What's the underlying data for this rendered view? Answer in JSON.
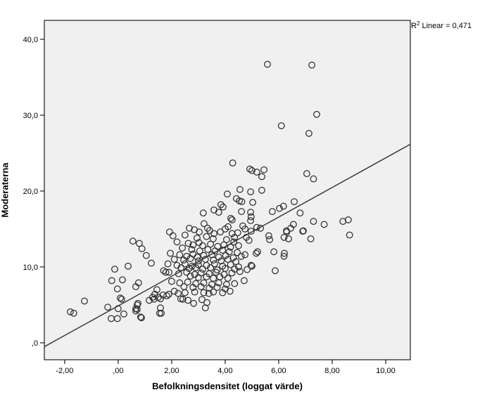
{
  "chart": {
    "y_title": "Moderaterna",
    "x_title": "Befolkningsdensitet (loggat värde)",
    "r2": {
      "prefix": "R",
      "sup": "2",
      "rest": " Linear = 0,471"
    }
  },
  "colors": {
    "canvas_bg": "#ffffff",
    "plot_bg": "#f0f0f0",
    "frame": "#545454",
    "marker": "#2e2e2e",
    "fit_line": "#3c3c3c",
    "tick": "#1a1a1a",
    "text": "#000000"
  },
  "chart_data": {
    "type": "scatter",
    "title": "",
    "xlabel": "Befolkningsdensitet (loggat värde)",
    "ylabel": "Moderaterna",
    "annotation": "R2 Linear = 0,471",
    "grid": false,
    "legend": "none",
    "marker": "open-circle",
    "xlim": [
      -2.76,
      10.92
    ],
    "ylim": [
      -2.23,
      42.49
    ],
    "x_ticks": [
      {
        "value": -2,
        "label": "-2,00"
      },
      {
        "value": 0,
        "label": ",00"
      },
      {
        "value": 2,
        "label": "2,00"
      },
      {
        "value": 4,
        "label": "4,00"
      },
      {
        "value": 6,
        "label": "6,00"
      },
      {
        "value": 8,
        "label": "8,00"
      },
      {
        "value": 10,
        "label": "10,00"
      }
    ],
    "y_ticks": [
      {
        "value": 0,
        "label": ",0"
      },
      {
        "value": 10,
        "label": "10,0"
      },
      {
        "value": 20,
        "label": "20,0"
      },
      {
        "value": 30,
        "label": "30,0"
      },
      {
        "value": 40,
        "label": "40,0"
      }
    ],
    "regression": {
      "slope": 1.95,
      "intercept": 4.87,
      "r_squared": 0.471
    },
    "points": [
      [
        5.58,
        36.7
      ],
      [
        7.24,
        36.6
      ],
      [
        7.42,
        30.1
      ],
      [
        6.1,
        28.6
      ],
      [
        7.13,
        27.6
      ],
      [
        4.28,
        23.7
      ],
      [
        4.92,
        22.9
      ],
      [
        5.45,
        22.8
      ],
      [
        5.0,
        22.7
      ],
      [
        5.18,
        22.5
      ],
      [
        5.37,
        21.9
      ],
      [
        7.05,
        22.3
      ],
      [
        7.3,
        21.6
      ],
      [
        4.55,
        20.2
      ],
      [
        4.95,
        19.9
      ],
      [
        5.37,
        20.1
      ],
      [
        4.08,
        19.6
      ],
      [
        4.42,
        19.0
      ],
      [
        4.53,
        18.7
      ],
      [
        4.62,
        18.6
      ],
      [
        5.03,
        18.5
      ],
      [
        3.84,
        18.2
      ],
      [
        3.92,
        17.9
      ],
      [
        3.76,
        17.2
      ],
      [
        3.58,
        17.5
      ],
      [
        3.18,
        17.1
      ],
      [
        4.61,
        17.3
      ],
      [
        4.95,
        17.2
      ],
      [
        4.97,
        16.6
      ],
      [
        4.95,
        16.1
      ],
      [
        5.76,
        17.3
      ],
      [
        6.03,
        17.7
      ],
      [
        6.58,
        18.6
      ],
      [
        6.18,
        18.0
      ],
      [
        6.8,
        17.1
      ],
      [
        4.21,
        16.4
      ],
      [
        4.26,
        16.2
      ],
      [
        4.11,
        15.3
      ],
      [
        3.21,
        15.7
      ],
      [
        3.34,
        15.1
      ],
      [
        3.42,
        14.8
      ],
      [
        2.66,
        15.1
      ],
      [
        3.03,
        14.6
      ],
      [
        4.0,
        15.0
      ],
      [
        4.66,
        15.4
      ],
      [
        4.74,
        15.0
      ],
      [
        5.18,
        15.2
      ],
      [
        5.32,
        15.1
      ],
      [
        4.47,
        14.5
      ],
      [
        4.26,
        14.4
      ],
      [
        7.3,
        16.0
      ],
      [
        7.7,
        15.6
      ],
      [
        8.4,
        16.0
      ],
      [
        8.6,
        16.2
      ],
      [
        8.65,
        14.2
      ],
      [
        6.55,
        15.6
      ],
      [
        6.45,
        15.1
      ],
      [
        6.3,
        14.6
      ],
      [
        6.2,
        13.9
      ],
      [
        6.9,
        14.7
      ],
      [
        7.2,
        13.7
      ],
      [
        6.29,
        14.75
      ],
      [
        6.37,
        13.7
      ],
      [
        6.92,
        14.75
      ],
      [
        6.2,
        11.4
      ],
      [
        6.21,
        11.8
      ],
      [
        5.87,
        9.5
      ],
      [
        5.82,
        12.0
      ],
      [
        5.63,
        14.1
      ],
      [
        5.66,
        13.6
      ],
      [
        5.21,
        12.0
      ],
      [
        5.16,
        11.8
      ],
      [
        4.97,
        14.7
      ],
      [
        4.79,
        13.9
      ],
      [
        4.89,
        13.5
      ],
      [
        4.74,
        11.6
      ],
      [
        4.97,
        10.2
      ],
      [
        5.0,
        10.1
      ],
      [
        4.82,
        9.65
      ],
      [
        4.71,
        8.2
      ],
      [
        0.55,
        13.4
      ],
      [
        0.79,
        13.1
      ],
      [
        0.89,
        12.4
      ],
      [
        1.05,
        11.5
      ],
      [
        1.24,
        10.5
      ],
      [
        -0.13,
        9.7
      ],
      [
        0.37,
        10.1
      ],
      [
        -0.24,
        8.2
      ],
      [
        0.16,
        8.3
      ],
      [
        -0.03,
        7.1
      ],
      [
        0.66,
        7.4
      ],
      [
        0.76,
        7.9
      ],
      [
        0.08,
        5.9
      ],
      [
        0.13,
        5.75
      ],
      [
        -0.39,
        4.7
      ],
      [
        -1.26,
        5.5
      ],
      [
        -1.66,
        3.9
      ],
      [
        -1.79,
        4.08
      ],
      [
        -0.26,
        3.2
      ],
      [
        -0.03,
        3.2
      ],
      [
        0.21,
        3.8
      ],
      [
        0.0,
        4.5
      ],
      [
        0.71,
        4.4
      ],
      [
        0.71,
        5.0
      ],
      [
        0.84,
        3.4
      ],
      [
        1.34,
        5.75
      ],
      [
        1.37,
        6.4
      ],
      [
        1.45,
        7.0
      ],
      [
        1.58,
        4.6
      ],
      [
        1.55,
        3.9
      ],
      [
        1.7,
        9.5
      ],
      [
        1.78,
        9.3
      ],
      [
        0.74,
        5.2
      ],
      [
        0.66,
        4.5
      ],
      [
        0.66,
        4.2
      ],
      [
        0.87,
        3.3
      ],
      [
        1.16,
        5.6
      ],
      [
        1.29,
        6.0
      ],
      [
        1.5,
        6.0
      ],
      [
        1.61,
        3.9
      ],
      [
        1.58,
        5.8
      ],
      [
        1.68,
        6.3
      ],
      [
        1.82,
        6.2
      ],
      [
        1.89,
        6.4
      ],
      [
        2.24,
        6.5
      ],
      [
        2.34,
        5.8
      ],
      [
        2.42,
        5.75
      ],
      [
        2.61,
        5.6
      ],
      [
        2.82,
        5.2
      ],
      [
        3.13,
        5.7
      ],
      [
        3.32,
        5.3
      ],
      [
        3.26,
        4.6
      ],
      [
        3.39,
        6.5
      ],
      [
        1.92,
        14.6
      ],
      [
        2.05,
        14.1
      ],
      [
        2.5,
        14.2
      ],
      [
        2.85,
        14.9
      ],
      [
        2.95,
        13.8
      ],
      [
        3.3,
        14.0
      ],
      [
        3.58,
        14.4
      ],
      [
        3.55,
        13.7
      ],
      [
        3.82,
        14.6
      ],
      [
        4.05,
        13.6
      ],
      [
        4.32,
        13.3
      ],
      [
        4.35,
        13.9
      ],
      [
        2.2,
        13.3
      ],
      [
        2.62,
        13.1
      ],
      [
        2.8,
        12.9
      ],
      [
        3.02,
        13.2
      ],
      [
        3.16,
        12.8
      ],
      [
        3.45,
        13.0
      ],
      [
        3.72,
        12.7
      ],
      [
        3.95,
        12.9
      ],
      [
        4.2,
        12.6
      ],
      [
        4.5,
        12.8
      ],
      [
        2.4,
        12.5
      ],
      [
        2.75,
        12.3
      ],
      [
        3.05,
        12.1
      ],
      [
        3.35,
        12.3
      ],
      [
        3.62,
        12.1
      ],
      [
        3.9,
        12.2
      ],
      [
        4.15,
        12.0
      ],
      [
        4.45,
        11.9
      ],
      [
        1.95,
        11.8
      ],
      [
        2.3,
        11.6
      ],
      [
        2.56,
        11.4
      ],
      [
        2.8,
        11.7
      ],
      [
        2.96,
        11.3
      ],
      [
        3.2,
        11.5
      ],
      [
        3.5,
        11.6
      ],
      [
        3.76,
        11.3
      ],
      [
        4.02,
        11.5
      ],
      [
        4.3,
        11.2
      ],
      [
        4.6,
        11.4
      ],
      [
        2.1,
        11.0
      ],
      [
        2.45,
        10.9
      ],
      [
        2.7,
        11.1
      ],
      [
        3.0,
        10.8
      ],
      [
        3.26,
        11.0
      ],
      [
        3.56,
        10.9
      ],
      [
        3.85,
        10.8
      ],
      [
        4.1,
        11.0
      ],
      [
        4.4,
        10.7
      ],
      [
        1.86,
        10.4
      ],
      [
        2.2,
        10.2
      ],
      [
        2.5,
        10.4
      ],
      [
        2.76,
        10.1
      ],
      [
        3.0,
        10.3
      ],
      [
        3.3,
        10.2
      ],
      [
        3.6,
        10.4
      ],
      [
        3.9,
        10.1
      ],
      [
        4.2,
        10.3
      ],
      [
        4.5,
        10.0
      ],
      [
        2.35,
        9.9
      ],
      [
        2.65,
        9.8
      ],
      [
        2.9,
        9.9
      ],
      [
        3.16,
        9.7
      ],
      [
        3.45,
        9.9
      ],
      [
        3.7,
        9.6
      ],
      [
        4.0,
        9.8
      ],
      [
        4.35,
        9.7
      ],
      [
        1.9,
        9.3
      ],
      [
        2.26,
        9.1
      ],
      [
        2.56,
        9.3
      ],
      [
        2.86,
        9.0
      ],
      [
        3.1,
        9.2
      ],
      [
        3.4,
        9.1
      ],
      [
        3.66,
        9.3
      ],
      [
        3.96,
        9.0
      ],
      [
        4.25,
        9.2
      ],
      [
        4.55,
        9.4
      ],
      [
        2.7,
        8.8
      ],
      [
        3.0,
        8.6
      ],
      [
        3.3,
        8.7
      ],
      [
        3.56,
        8.5
      ],
      [
        3.8,
        8.7
      ],
      [
        4.1,
        8.5
      ],
      [
        2.0,
        8.1
      ],
      [
        2.3,
        7.9
      ],
      [
        2.6,
        8.0
      ],
      [
        2.9,
        7.8
      ],
      [
        3.2,
        7.9
      ],
      [
        3.5,
        7.7
      ],
      [
        3.76,
        7.9
      ],
      [
        4.05,
        7.7
      ],
      [
        4.35,
        7.8
      ],
      [
        2.46,
        7.4
      ],
      [
        2.8,
        7.3
      ],
      [
        3.1,
        7.4
      ],
      [
        3.4,
        7.2
      ],
      [
        3.7,
        7.3
      ],
      [
        4.0,
        7.1
      ],
      [
        2.1,
        6.8
      ],
      [
        2.5,
        6.6
      ],
      [
        2.86,
        6.7
      ],
      [
        3.2,
        6.6
      ],
      [
        3.56,
        6.7
      ],
      [
        3.9,
        6.6
      ],
      [
        4.18,
        6.8
      ]
    ]
  }
}
